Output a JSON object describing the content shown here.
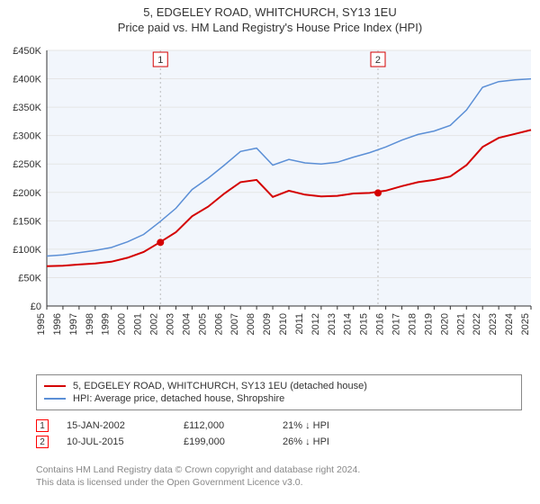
{
  "title_line1": "5, EDGELEY ROAD, WHITCHURCH, SY13 1EU",
  "title_line2": "Price paid vs. HM Land Registry's House Price Index (HPI)",
  "chart": {
    "type": "line",
    "background_color": "#ffffff",
    "plot_background_color": "#f2f6fc",
    "grid_color": "#e5e5e5",
    "axis_color": "#333333",
    "tick_fontsize": 11,
    "tick_color": "#333333",
    "ylabel_prefix": "£",
    "ylim": [
      0,
      450000
    ],
    "ytick_step": 50000,
    "yticks": [
      "£0",
      "£50K",
      "£100K",
      "£150K",
      "£200K",
      "£250K",
      "£300K",
      "£350K",
      "£400K",
      "£450K"
    ],
    "xlim": [
      1995,
      2025
    ],
    "xticks": [
      1995,
      1996,
      1997,
      1998,
      1999,
      2000,
      2001,
      2002,
      2003,
      2004,
      2005,
      2006,
      2007,
      2008,
      2009,
      2010,
      2011,
      2012,
      2013,
      2014,
      2015,
      2016,
      2017,
      2018,
      2019,
      2020,
      2021,
      2022,
      2023,
      2024,
      2025
    ],
    "series": [
      {
        "name": "price_paid",
        "label": "5, EDGELEY ROAD, WHITCHURCH, SY13 1EU (detached house)",
        "color": "#d40000",
        "line_width": 2,
        "points": [
          [
            1995,
            70000
          ],
          [
            1996,
            71000
          ],
          [
            1997,
            73000
          ],
          [
            1998,
            75000
          ],
          [
            1999,
            78000
          ],
          [
            2000,
            85000
          ],
          [
            2001,
            95000
          ],
          [
            2002,
            112000
          ],
          [
            2003,
            130000
          ],
          [
            2004,
            158000
          ],
          [
            2005,
            175000
          ],
          [
            2006,
            198000
          ],
          [
            2007,
            218000
          ],
          [
            2008,
            222000
          ],
          [
            2009,
            192000
          ],
          [
            2010,
            203000
          ],
          [
            2011,
            196000
          ],
          [
            2012,
            193000
          ],
          [
            2013,
            194000
          ],
          [
            2014,
            198000
          ],
          [
            2015,
            199000
          ],
          [
            2016,
            203000
          ],
          [
            2017,
            211000
          ],
          [
            2018,
            218000
          ],
          [
            2019,
            222000
          ],
          [
            2020,
            228000
          ],
          [
            2021,
            248000
          ],
          [
            2022,
            280000
          ],
          [
            2023,
            296000
          ],
          [
            2024,
            303000
          ],
          [
            2025,
            310000
          ]
        ]
      },
      {
        "name": "hpi",
        "label": "HPI: Average price, detached house, Shropshire",
        "color": "#5b8fd6",
        "line_width": 1.5,
        "points": [
          [
            1995,
            88000
          ],
          [
            1996,
            90000
          ],
          [
            1997,
            94000
          ],
          [
            1998,
            98000
          ],
          [
            1999,
            103000
          ],
          [
            2000,
            113000
          ],
          [
            2001,
            126000
          ],
          [
            2002,
            148000
          ],
          [
            2003,
            172000
          ],
          [
            2004,
            205000
          ],
          [
            2005,
            225000
          ],
          [
            2006,
            248000
          ],
          [
            2007,
            272000
          ],
          [
            2008,
            278000
          ],
          [
            2009,
            248000
          ],
          [
            2010,
            258000
          ],
          [
            2011,
            252000
          ],
          [
            2012,
            250000
          ],
          [
            2013,
            253000
          ],
          [
            2014,
            262000
          ],
          [
            2015,
            270000
          ],
          [
            2016,
            280000
          ],
          [
            2017,
            292000
          ],
          [
            2018,
            302000
          ],
          [
            2019,
            308000
          ],
          [
            2020,
            318000
          ],
          [
            2021,
            345000
          ],
          [
            2022,
            385000
          ],
          [
            2023,
            395000
          ],
          [
            2024,
            398000
          ],
          [
            2025,
            400000
          ]
        ]
      }
    ],
    "markers": [
      {
        "id": "1",
        "x": 2002.04,
        "y": 112000,
        "box_color": "#d40000",
        "dot_color": "#d40000"
      },
      {
        "id": "2",
        "x": 2015.52,
        "y": 199000,
        "box_color": "#d40000",
        "dot_color": "#d40000"
      }
    ]
  },
  "legend": {
    "border_color": "#888888",
    "items": [
      {
        "color": "#d40000",
        "label": "5, EDGELEY ROAD, WHITCHURCH, SY13 1EU (detached house)"
      },
      {
        "color": "#5b8fd6",
        "label": "HPI: Average price, detached house, Shropshire"
      }
    ]
  },
  "transactions": [
    {
      "marker": "1",
      "date": "15-JAN-2002",
      "price": "£112,000",
      "pct": "21% ↓ HPI"
    },
    {
      "marker": "2",
      "date": "10-JUL-2015",
      "price": "£199,000",
      "pct": "26% ↓ HPI"
    }
  ],
  "attribution_line1": "Contains HM Land Registry data © Crown copyright and database right 2024.",
  "attribution_line2": "This data is licensed under the Open Government Licence v3.0."
}
